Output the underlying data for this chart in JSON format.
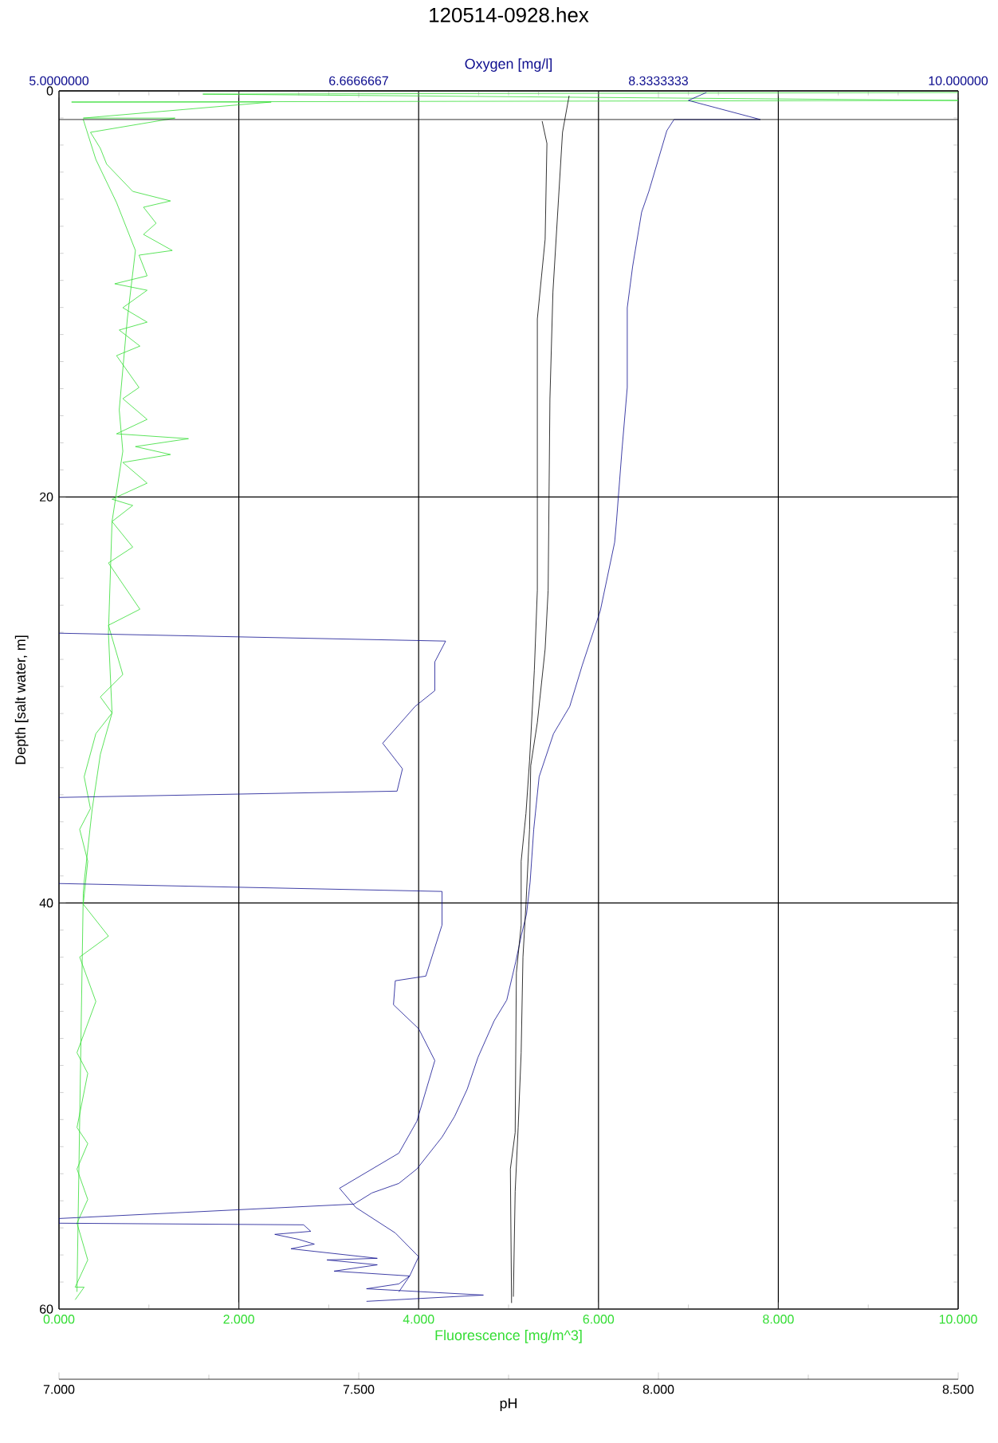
{
  "chart_data": [
    {
      "type": "line",
      "title": "120514-0928.hex",
      "x2label": "Oxygen [mg/l]",
      "xlabel": "Fluorescence [mg/m^3]",
      "ylabel": "Depth [salt water, m]",
      "xlim": [
        0,
        10
      ],
      "xticks": [
        {
          "value": 0,
          "label": "0.000"
        },
        {
          "value": 2,
          "label": "2.000"
        },
        {
          "value": 4,
          "label": "4.000"
        },
        {
          "value": 6,
          "label": "6.000"
        },
        {
          "value": 8,
          "label": "8.000"
        },
        {
          "value": 10,
          "label": "10.000"
        }
      ],
      "x2lim": [
        5,
        10
      ],
      "x2ticks": [
        {
          "value": 5,
          "label": "5.0000000"
        },
        {
          "value": 6.6666667,
          "label": "6.6666667"
        },
        {
          "value": 8.3333333,
          "label": "8.3333333"
        },
        {
          "value": 10,
          "label": "10.000000"
        }
      ],
      "ylim": [
        60,
        0
      ],
      "yticks": [
        0,
        20,
        40,
        60
      ],
      "grid": true,
      "series": [
        {
          "axis": "x2",
          "color": "#101090",
          "x": [
            8.6,
            8.5,
            8.9,
            8.42,
            8.38,
            8.28,
            8.24,
            8.19,
            8.16,
            8.16,
            8.13,
            8.1,
            8.09,
            8.01,
            7.91,
            7.84,
            7.75,
            7.67,
            7.64,
            7.62,
            7.6,
            7.57,
            7.54,
            7.49,
            7.42,
            7.33,
            7.27,
            7.2,
            7.13,
            6.99,
            6.89,
            6.74,
            6.64,
            5.0,
            5.0,
            6.36,
            6.4,
            6.2,
            6.33,
            6.42,
            6.29,
            6.77,
            6.49,
            6.77,
            6.53,
            6.95,
            6.89,
            6.71,
            7.36,
            6.71
          ],
          "values": [
            0.08,
            0.47,
            1.41,
            1.41,
            1.96,
            4.95,
            5.97,
            8.64,
            10.68,
            14.61,
            17.75,
            21.21,
            22.23,
            25.61,
            28.28,
            30.32,
            31.66,
            33.78,
            36.37,
            38.96,
            40.53,
            41.63,
            42.89,
            44.78,
            45.8,
            47.6,
            49.17,
            50.51,
            51.53,
            53.1,
            53.81,
            54.28,
            54.83,
            55.54,
            55.77,
            55.85,
            56.17,
            56.32,
            56.56,
            56.8,
            57.03,
            57.5,
            57.58,
            57.82,
            58.13,
            58.37,
            58.76,
            59.0,
            59.31,
            59.62
          ]
        },
        {
          "axis": "x2",
          "color": "#101090",
          "x": [
            5.0,
            7.15,
            7.09,
            7.09,
            6.98,
            6.8,
            6.91,
            6.88,
            5.0
          ],
          "values": [
            26.71,
            27.1,
            28.12,
            29.54,
            30.32,
            32.13,
            33.39,
            34.49,
            34.8
          ]
        },
        {
          "axis": "x2",
          "color": "#101090",
          "x": [
            5.0,
            7.13,
            7.13,
            7.04,
            6.87,
            6.86,
            7.0,
            7.09,
            6.99,
            6.89,
            6.56,
            6.65,
            6.87,
            7.0,
            6.95,
            6.89
          ],
          "values": [
            39.04,
            39.43,
            41.08,
            43.6,
            43.83,
            45.01,
            46.19,
            47.76,
            50.75,
            52.32,
            54.05,
            54.99,
            56.25,
            57.42,
            58.37,
            59.15
          ]
        },
        {
          "color": "#33dd33",
          "x": [
            10,
            1.6,
            10,
            0.14,
            2.36,
            0.27,
            1.29,
            0.35,
            0.46,
            0.53,
            0.82,
            1.24,
            0.94,
            1.08,
            0.94,
            1.26,
            0.89,
            0.98,
            0.62,
            0.98,
            0.71,
            0.98,
            0.67,
            0.9,
            0.64,
            0.89,
            0.71,
            0.98,
            0.64,
            1.44,
            0.85,
            1.24,
            0.71,
            0.98,
            0.59,
            0.82,
            0.59,
            0.82,
            0.55,
            0.9,
            0.55,
            0.71,
            0.46,
            0.59,
            0.41,
            0.28,
            0.35,
            0.23,
            0.32,
            0.27,
            0.55,
            0.23,
            0.41,
            0.2,
            0.32,
            0.2,
            0.32,
            0.2,
            0.32,
            0.2,
            0.32,
            0.18,
            0.28,
            0.18
          ],
          "values": [
            0.08,
            0.16,
            0.47,
            0.55,
            0.55,
            1.34,
            1.34,
            2.04,
            2.83,
            3.61,
            4.95,
            5.42,
            5.73,
            6.52,
            7.07,
            7.86,
            8.09,
            9.11,
            9.5,
            9.82,
            10.68,
            11.39,
            11.78,
            12.57,
            13.04,
            14.61,
            15.16,
            16.18,
            16.89,
            17.13,
            17.52,
            17.91,
            18.3,
            19.32,
            20.11,
            20.42,
            21.21,
            22.47,
            23.25,
            25.53,
            26.32,
            28.75,
            29.85,
            30.64,
            31.66,
            33.78,
            35.35,
            36.37,
            37.94,
            40.06,
            41.63,
            42.66,
            44.85,
            47.37,
            48.39,
            51.06,
            51.85,
            53.1,
            54.6,
            55.77,
            57.58,
            58.92,
            58.92,
            59.54
          ]
        },
        {
          "color": "#33dd33",
          "x": [
            0.27,
            0.41,
            0.64,
            0.85,
            0.76,
            0.67,
            0.71,
            0.59,
            0.55,
            0.59,
            0.46,
            0.37,
            0.28,
            0.27,
            0.2
          ],
          "values": [
            1.41,
            3.38,
            5.5,
            7.86,
            11.23,
            15.71,
            17.75,
            21.21,
            26.71,
            30.64,
            32.68,
            35.35,
            38.96,
            39.51,
            59.15
          ]
        }
      ]
    },
    {
      "type": "line",
      "xlabel": "pH",
      "xlim": [
        7,
        8.5
      ],
      "xticks": [
        {
          "value": 7,
          "label": "7.000"
        },
        {
          "value": 7.5,
          "label": "7.500"
        },
        {
          "value": 8,
          "label": "8.000"
        },
        {
          "value": 8.5,
          "label": "8.500"
        }
      ],
      "ylim": [
        60,
        0
      ],
      "tick_labels": "x",
      "series": [
        {
          "color": "#000000",
          "x": [
            7.0,
            8.5
          ],
          "values": [
            1.41,
            1.41
          ]
        },
        {
          "color": "#000000",
          "x": [
            7.806,
            7.814,
            7.811,
            7.798,
            7.798,
            7.793,
            7.785,
            7.779,
            7.771,
            7.771,
            7.763,
            7.761,
            7.753,
            7.755
          ],
          "values": [
            1.49,
            2.59,
            7.31,
            11.23,
            24.59,
            28.52,
            32.99,
            35.59,
            37.94,
            41.08,
            43.44,
            51.3,
            53.1,
            59.7
          ]
        },
        {
          "color": "#000000",
          "x": [
            7.851,
            7.84,
            7.832,
            7.824,
            7.819,
            7.816,
            7.811,
            7.798,
            7.787,
            7.785,
            7.779,
            7.774,
            7.771,
            7.766,
            7.761,
            7.758
          ],
          "values": [
            0.24,
            2.04,
            5.97,
            9.9,
            15.16,
            24.59,
            27.49,
            31.11,
            33.23,
            36.37,
            40.06,
            42.66,
            47.37,
            51.06,
            54.2,
            59.39
          ]
        }
      ]
    }
  ]
}
